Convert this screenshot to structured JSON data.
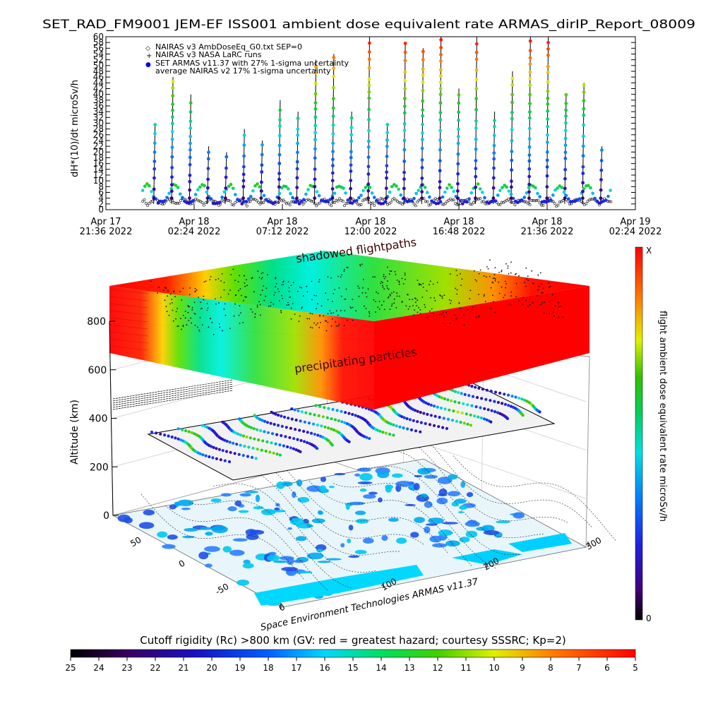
{
  "title": "SET_RAD_FM9001  JEM-EF ISS001 ambient dose equivalent rate ARMAS_dirIP_Report_08009",
  "colors": {
    "background": "#ffffff",
    "nairas_symbol": "#000000",
    "armas_symbol": "#0000ff",
    "colorbar_max": "#ff0000",
    "colorbar_min": "#000000"
  },
  "chart_data": [
    {
      "type": "scatter",
      "ylabel": "dH*(10)/dt microSv/h",
      "ylim": [
        0,
        60
      ],
      "y_ticks": [
        0,
        2,
        4,
        6,
        8,
        10,
        12,
        14,
        16,
        18,
        20,
        22,
        24,
        26,
        28,
        30,
        32,
        34,
        36,
        38,
        40,
        42,
        44,
        46,
        48,
        50,
        52,
        54,
        56,
        58,
        60
      ],
      "x_ticks": [
        {
          "line1": "Apr 17",
          "line2": "21:36 2022"
        },
        {
          "line1": "Apr 18",
          "line2": "02:24 2022"
        },
        {
          "line1": "Apr 18",
          "line2": "07:12 2022"
        },
        {
          "line1": "Apr 18",
          "line2": "12:00 2022"
        },
        {
          "line1": "Apr 18",
          "line2": "16:48 2022"
        },
        {
          "line1": "Apr 18",
          "line2": "21:36 2022"
        },
        {
          "line1": "Apr 19",
          "line2": "02:24 2022"
        }
      ],
      "legend": [
        {
          "symbol": "◇",
          "label": "NAIRAS v3 AmbDoseEq_G0.txt SEP=0"
        },
        {
          "symbol": "+",
          "label": "NAIRAS v3 NASA LaRC runs"
        },
        {
          "symbol": "●",
          "label": "SET ARMAS v11.37 with 27% 1-sigma uncertainty"
        },
        {
          "symbol": "",
          "label": "average NAIRAS v2 17% 1-sigma uncertainty"
        }
      ],
      "legend_position": "top-left",
      "series": [
        {
          "name": "SET ARMAS v11.37 with 27% 1-sigma uncertainty",
          "x_hours_range": [
            2.0,
            27.5
          ],
          "typical_range": [
            2,
            8
          ],
          "spike_values": [
            30,
            46,
            40,
            22,
            20,
            28,
            24,
            38,
            34,
            52,
            54,
            34,
            60,
            30,
            58,
            56,
            60,
            42,
            60,
            34,
            48,
            60,
            60,
            40,
            44,
            22
          ]
        },
        {
          "name": "NAIRAS v3 AmbDoseEq_G0.txt SEP=0",
          "typical_range": [
            0,
            6
          ]
        }
      ]
    },
    {
      "type": "3d_surface",
      "zlabel": "Altitude (km)",
      "z_ticks": [
        0,
        200,
        400,
        600,
        800
      ],
      "lon_ticks": [
        0,
        100,
        200,
        300
      ],
      "lat_ticks": [
        -50,
        0,
        50
      ],
      "annotations": [
        "shadowed flightpaths",
        "precipitating particles"
      ],
      "credit": "Space Environment Technologies ARMAS v11.37",
      "colorbar": {
        "label": "flight ambient dose equivalent rate microSv/h",
        "top_label": "X",
        "bottom_label": "0"
      }
    },
    {
      "type": "colorbar",
      "title": "Cutoff rigidity (Rc) >800 km (GV: red = greatest hazard; courtesy SSSRC; Kp=2)",
      "tick_labels": [
        "25",
        "24",
        "23",
        "22",
        "21",
        "20",
        "19",
        "18",
        "17",
        "16",
        "15",
        "14",
        "13",
        "12",
        "11",
        "10",
        "9",
        "8",
        "7",
        "6",
        "5"
      ]
    }
  ]
}
